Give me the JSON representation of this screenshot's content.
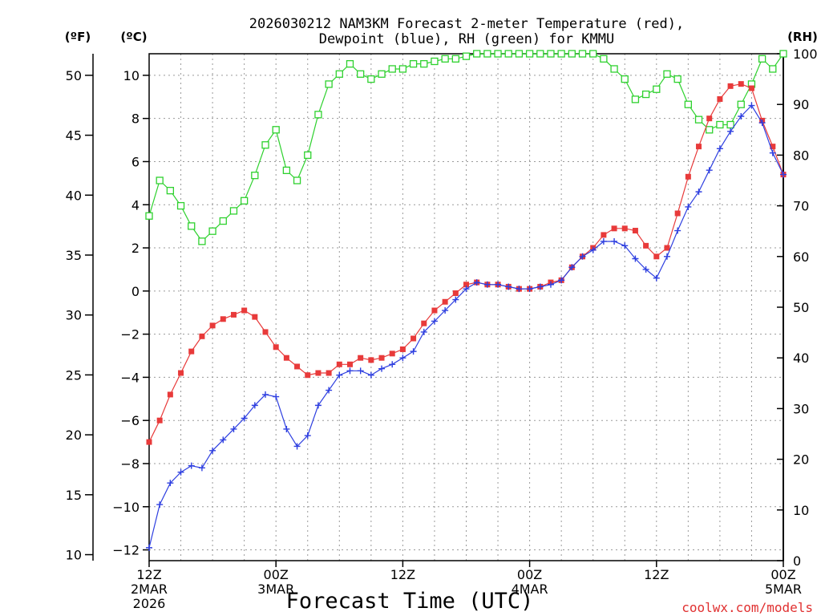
{
  "chart_data": {
    "type": "line",
    "title": [
      "2026030212 NAM3KM Forecast 2-meter Temperature (red),",
      "Dewpoint (blue), RH (green) for KMMU"
    ],
    "xlabel": "Forecast Time (UTC)",
    "credit": "coolwx.com/models",
    "units": {
      "left_outer": "(ºF)",
      "left_inner": "(ºC)",
      "right": "(RH)"
    },
    "x_hours": [
      0,
      1,
      2,
      3,
      4,
      5,
      6,
      7,
      8,
      9,
      10,
      11,
      12,
      13,
      14,
      15,
      16,
      17,
      18,
      19,
      20,
      21,
      22,
      23,
      24,
      25,
      26,
      27,
      28,
      29,
      30,
      31,
      32,
      33,
      34,
      35,
      36,
      37,
      38,
      39,
      40,
      41,
      42,
      43,
      44,
      45,
      46,
      47,
      48,
      49,
      50,
      51,
      52,
      53,
      54,
      55,
      56,
      57,
      58,
      59,
      60
    ],
    "xlim": [
      0,
      60
    ],
    "x_ticks": [
      {
        "hour": 0,
        "lines": [
          "12Z",
          "2MAR",
          "2026"
        ]
      },
      {
        "hour": 12,
        "lines": [
          "00Z",
          "3MAR"
        ]
      },
      {
        "hour": 24,
        "lines": [
          "12Z"
        ]
      },
      {
        "hour": 36,
        "lines": [
          "00Z",
          "4MAR"
        ]
      },
      {
        "hour": 48,
        "lines": [
          "12Z"
        ]
      },
      {
        "hour": 60,
        "lines": [
          "00Z",
          "5MAR"
        ]
      }
    ],
    "axes": {
      "celsius": {
        "ylim": [
          -12.5,
          11
        ],
        "ticks": [
          -12,
          -10,
          -8,
          -6,
          -4,
          -2,
          0,
          2,
          4,
          6,
          8,
          10
        ]
      },
      "fahrenheit": {
        "ticks": [
          10,
          15,
          20,
          25,
          30,
          35,
          40,
          45,
          50
        ]
      },
      "rh": {
        "ylim": [
          0,
          100
        ],
        "ticks": [
          0,
          10,
          20,
          30,
          40,
          50,
          60,
          70,
          80,
          90,
          100
        ]
      }
    },
    "series": [
      {
        "name": "Temperature",
        "unit": "C",
        "color": "#e83a3a",
        "marker": "filled-square",
        "values": [
          -7.0,
          -6.0,
          -4.8,
          -3.8,
          -2.8,
          -2.1,
          -1.6,
          -1.3,
          -1.1,
          -0.9,
          -1.2,
          -1.9,
          -2.6,
          -3.1,
          -3.5,
          -3.9,
          -3.8,
          -3.8,
          -3.4,
          -3.4,
          -3.1,
          -3.2,
          -3.1,
          -2.9,
          -2.7,
          -2.2,
          -1.5,
          -0.9,
          -0.5,
          -0.1,
          0.3,
          0.4,
          0.3,
          0.3,
          0.2,
          0.1,
          0.1,
          0.2,
          0.4,
          0.5,
          1.1,
          1.6,
          2.0,
          2.6,
          2.9,
          2.9,
          2.8,
          2.1,
          1.6,
          2.0,
          3.6,
          5.3,
          6.7,
          8.0,
          8.9,
          9.5,
          9.6,
          9.4,
          7.9,
          6.7,
          5.4
        ]
      },
      {
        "name": "Dewpoint",
        "unit": "C",
        "color": "#2e3fe0",
        "marker": "plus",
        "values": [
          -11.9,
          -9.9,
          -8.9,
          -8.4,
          -8.1,
          -8.2,
          -7.4,
          -6.9,
          -6.4,
          -5.9,
          -5.3,
          -4.8,
          -4.9,
          -6.4,
          -7.2,
          -6.7,
          -5.3,
          -4.6,
          -3.9,
          -3.7,
          -3.7,
          -3.9,
          -3.6,
          -3.4,
          -3.1,
          -2.8,
          -1.9,
          -1.4,
          -0.9,
          -0.4,
          0.1,
          0.4,
          0.3,
          0.3,
          0.2,
          0.1,
          0.1,
          0.2,
          0.3,
          0.5,
          1.1,
          1.6,
          1.9,
          2.3,
          2.3,
          2.1,
          1.5,
          1.0,
          0.6,
          1.6,
          2.8,
          3.9,
          4.6,
          5.6,
          6.6,
          7.4,
          8.1,
          8.6,
          7.8,
          6.4,
          5.4
        ]
      },
      {
        "name": "RH",
        "unit": "%",
        "color": "#2ed12e",
        "marker": "open-square",
        "values": [
          68,
          75,
          73,
          70,
          66,
          63,
          65,
          67,
          69,
          71,
          76,
          82,
          85,
          77,
          75,
          80,
          88,
          94,
          96,
          98,
          96,
          95,
          96,
          97,
          97,
          98,
          98,
          98.5,
          99,
          99,
          99.5,
          100,
          100,
          100,
          100,
          100,
          100,
          100,
          100,
          100,
          100,
          100,
          100,
          99,
          97,
          95,
          91,
          92,
          93,
          96,
          95,
          90,
          87,
          85,
          86,
          86,
          90,
          94,
          99,
          97,
          100
        ]
      }
    ]
  }
}
